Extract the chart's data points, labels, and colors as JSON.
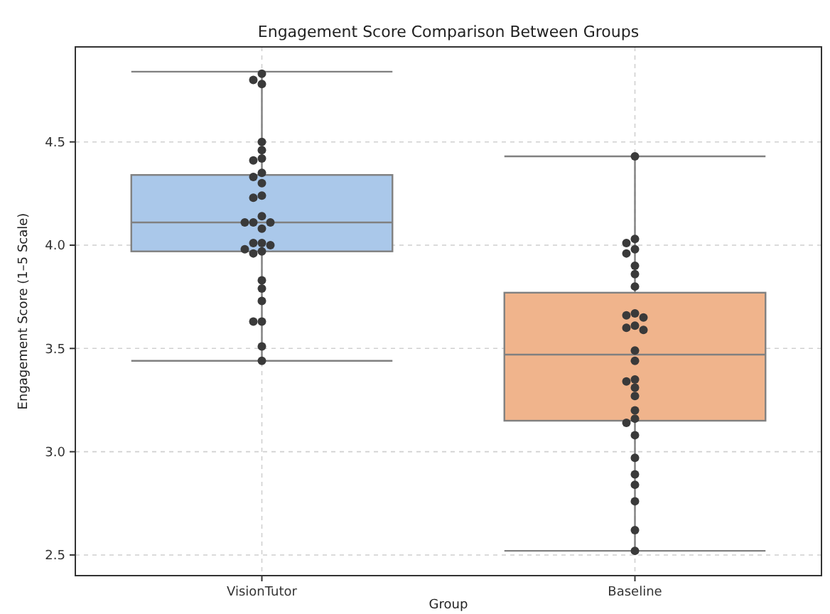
{
  "chart_data": {
    "type": "box",
    "title": "Engagement Score Comparison Between Groups",
    "xlabel": "Group",
    "ylabel": "Engagement Score (1–5 Scale)",
    "categories": [
      "VisionTutor",
      "Baseline"
    ],
    "ylim": [
      2.4,
      4.96
    ],
    "yticks": [
      {
        "value": 2.5,
        "label": "2.5"
      },
      {
        "value": 3.0,
        "label": "3.0"
      },
      {
        "value": 3.5,
        "label": "3.5"
      },
      {
        "value": 4.0,
        "label": "4.0"
      },
      {
        "value": 4.5,
        "label": "4.5"
      }
    ],
    "grid": true,
    "colors": [
      "#aac8ea",
      "#f0b48c"
    ],
    "boxes": [
      {
        "low": 3.44,
        "q1": 3.97,
        "median": 4.11,
        "q3": 4.34,
        "high": 4.84
      },
      {
        "low": 2.52,
        "q1": 3.15,
        "median": 3.47,
        "q3": 3.77,
        "high": 4.43
      }
    ],
    "series": [
      {
        "type": "scatter",
        "color": "#3a3a3a",
        "marker": "circle",
        "x": [
          "VisionTutor",
          "VisionTutor",
          "VisionTutor",
          "VisionTutor",
          "VisionTutor",
          "VisionTutor",
          "VisionTutor",
          "VisionTutor",
          "VisionTutor",
          "VisionTutor",
          "VisionTutor",
          "VisionTutor",
          "VisionTutor",
          "VisionTutor",
          "VisionTutor",
          "VisionTutor",
          "VisionTutor",
          "VisionTutor",
          "VisionTutor",
          "VisionTutor",
          "VisionTutor",
          "VisionTutor",
          "VisionTutor",
          "VisionTutor",
          "VisionTutor",
          "VisionTutor",
          "VisionTutor",
          "VisionTutor",
          "VisionTutor",
          "VisionTutor"
        ],
        "values": [
          4.83,
          4.8,
          4.78,
          4.5,
          4.46,
          4.42,
          4.41,
          4.35,
          4.33,
          4.3,
          4.24,
          4.23,
          4.14,
          4.11,
          4.11,
          4.11,
          4.08,
          4.01,
          4.01,
          4.0,
          3.98,
          3.97,
          3.96,
          3.83,
          3.79,
          3.73,
          3.63,
          3.63,
          3.51,
          3.44
        ]
      },
      {
        "type": "scatter",
        "color": "#3a3a3a",
        "marker": "circle",
        "x": [
          "Baseline",
          "Baseline",
          "Baseline",
          "Baseline",
          "Baseline",
          "Baseline",
          "Baseline",
          "Baseline",
          "Baseline",
          "Baseline",
          "Baseline",
          "Baseline",
          "Baseline",
          "Baseline",
          "Baseline",
          "Baseline",
          "Baseline",
          "Baseline",
          "Baseline",
          "Baseline",
          "Baseline",
          "Baseline",
          "Baseline",
          "Baseline",
          "Baseline",
          "Baseline",
          "Baseline",
          "Baseline",
          "Baseline",
          "Baseline"
        ],
        "values": [
          4.43,
          4.03,
          4.01,
          3.98,
          3.96,
          3.9,
          3.86,
          3.8,
          3.67,
          3.66,
          3.65,
          3.61,
          3.6,
          3.59,
          3.49,
          3.44,
          3.35,
          3.34,
          3.31,
          3.27,
          3.2,
          3.16,
          3.14,
          3.08,
          2.97,
          2.89,
          2.84,
          2.76,
          2.62,
          2.52
        ]
      }
    ]
  }
}
